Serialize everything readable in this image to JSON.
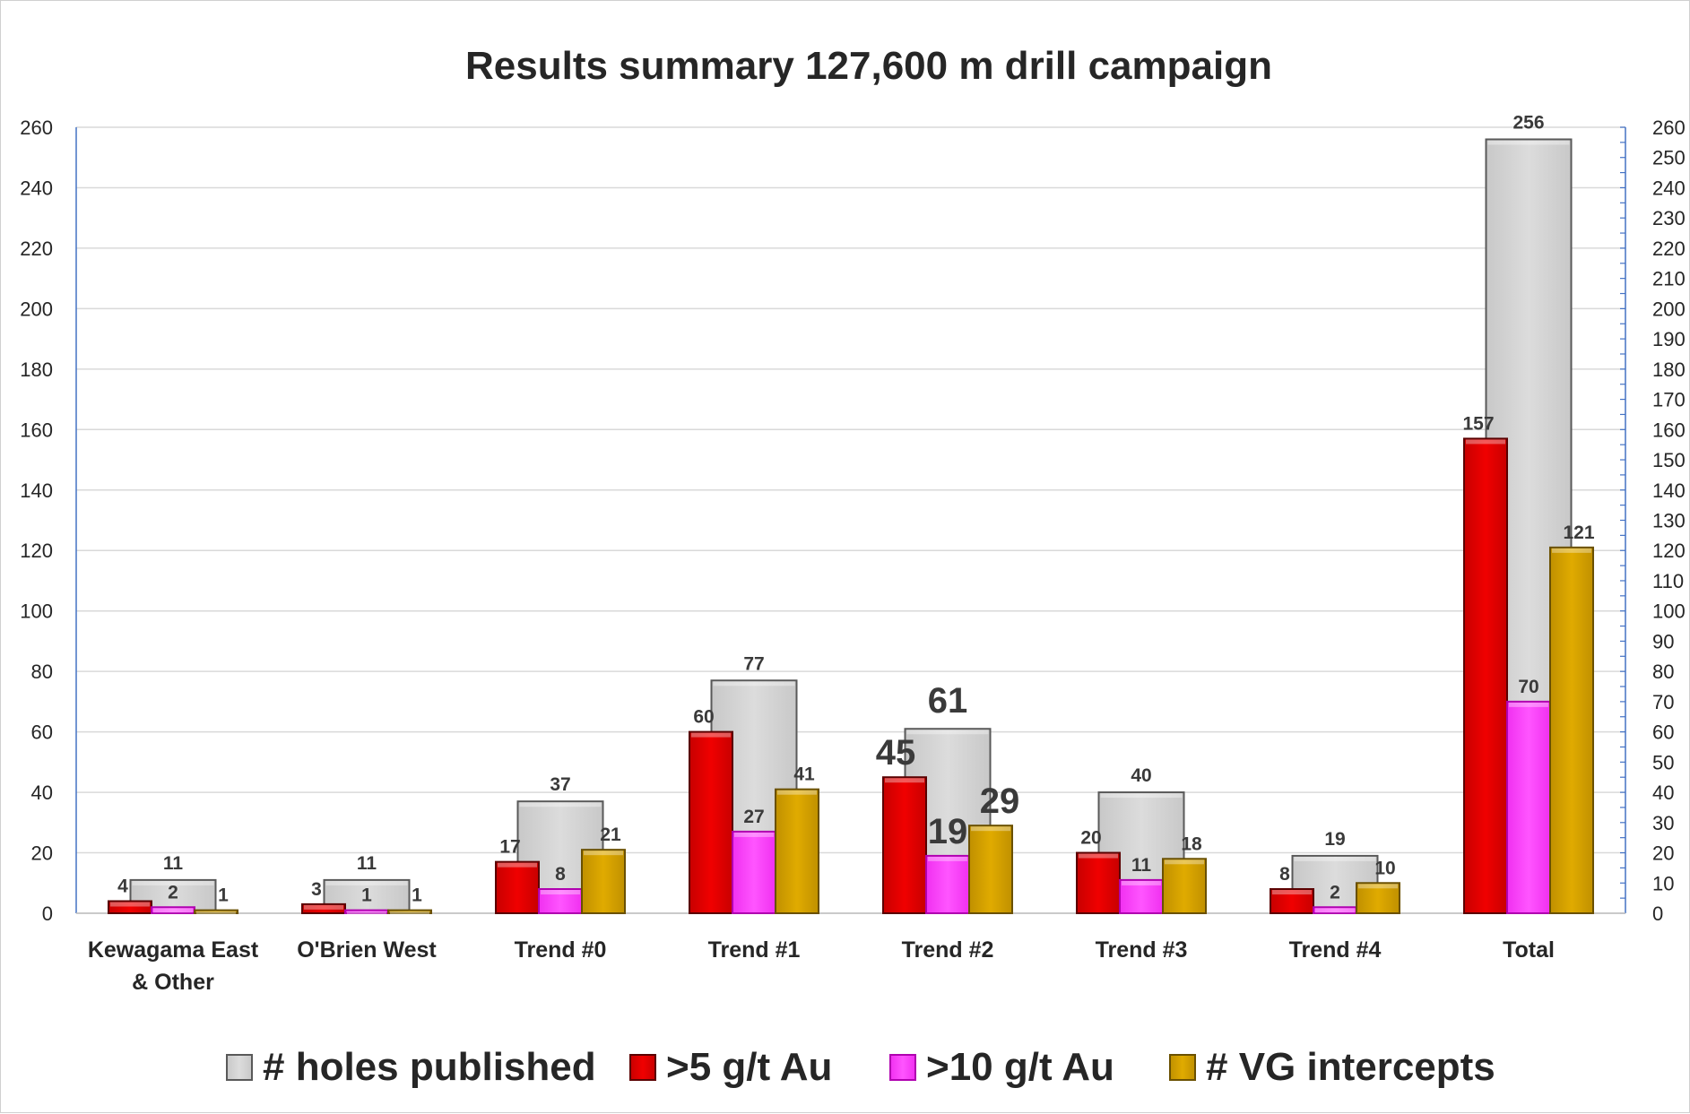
{
  "chart_data": {
    "type": "bar",
    "title": "Results summary 127,600 m drill campaign",
    "categories": [
      [
        "Kewagama East",
        "& Other"
      ],
      [
        "O'Brien West"
      ],
      [
        "Trend #0"
      ],
      [
        "Trend #1"
      ],
      [
        "Trend #2"
      ],
      [
        "Trend #3"
      ],
      [
        "Trend #4"
      ],
      [
        "Total"
      ]
    ],
    "series": [
      {
        "name": "# holes published",
        "values": [
          11,
          11,
          37,
          77,
          61,
          40,
          19,
          256
        ],
        "color": "#d4d4d4",
        "axis": "primary"
      },
      {
        "name": ">5 g/t Au",
        "values": [
          4,
          3,
          17,
          60,
          45,
          20,
          8,
          157
        ],
        "color": "#e00000",
        "axis": "secondary"
      },
      {
        "name": ">10 g/t Au",
        "values": [
          2,
          1,
          8,
          27,
          19,
          11,
          2,
          70
        ],
        "color": "#ff40ff",
        "axis": "secondary"
      },
      {
        "name": "# VG intercepts",
        "values": [
          1,
          1,
          21,
          41,
          29,
          18,
          10,
          121
        ],
        "color": "#d4a000",
        "axis": "secondary"
      }
    ],
    "ylim": [
      0,
      260
    ],
    "y_ticks": [
      0,
      20,
      40,
      60,
      80,
      100,
      120,
      140,
      160,
      180,
      200,
      220,
      240,
      260
    ],
    "y2lim": [
      0,
      260
    ],
    "y2_ticks": [
      0,
      10,
      20,
      30,
      40,
      50,
      60,
      70,
      80,
      90,
      100,
      110,
      120,
      130,
      140,
      150,
      160,
      170,
      180,
      190,
      200,
      210,
      220,
      230,
      240,
      250,
      260
    ],
    "grid": true,
    "legend_position": "bottom",
    "emphasized_category": "Trend #2"
  }
}
